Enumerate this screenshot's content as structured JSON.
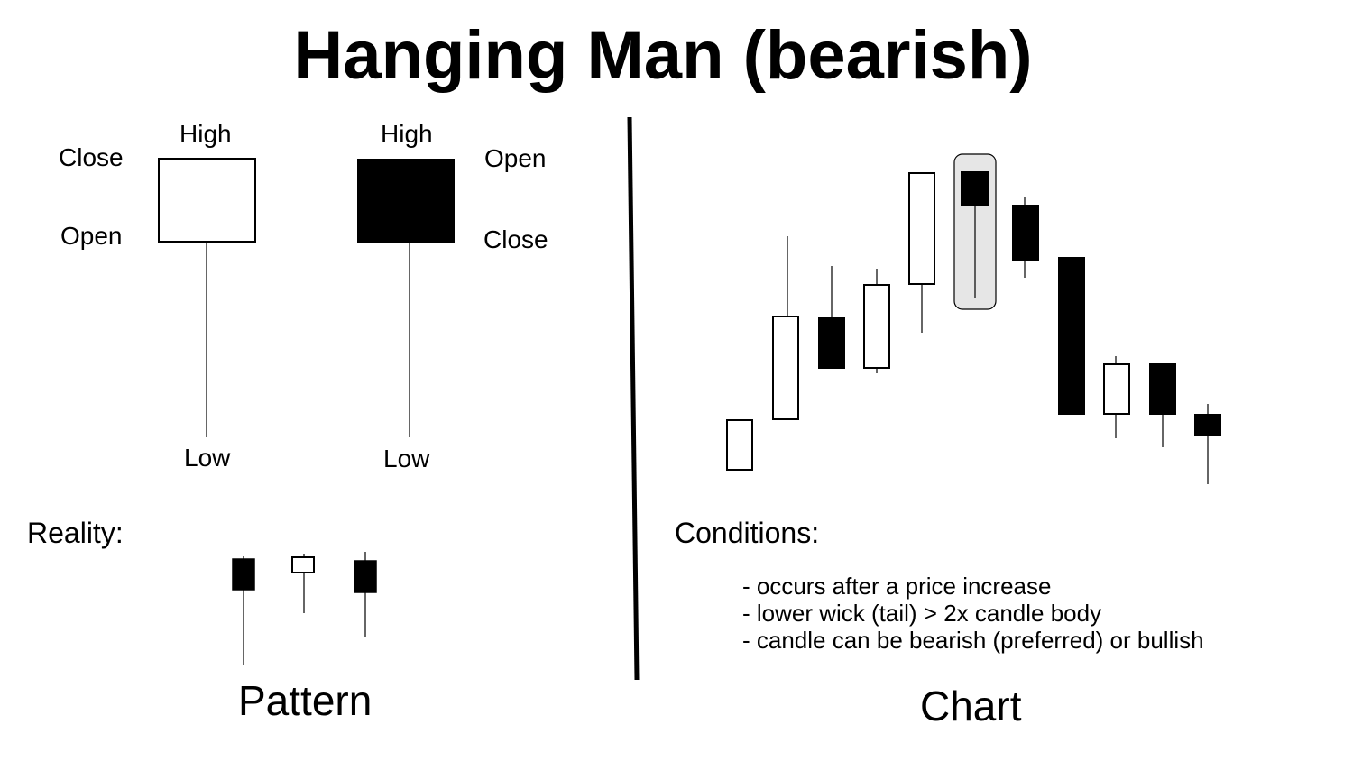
{
  "title": "Hanging Man (bearish)",
  "pattern": {
    "bullish": {
      "high": "High",
      "close": "Close",
      "open": "Open",
      "low": "Low"
    },
    "bearish": {
      "high": "High",
      "open": "Open",
      "close": "Close",
      "low": "Low"
    },
    "reality_label": "Reality:",
    "section_label": "Pattern"
  },
  "chart_section": {
    "conditions_label": "Conditions:",
    "conditions": [
      "- occurs after a price increase",
      "- lower wick (tail) > 2x candle body",
      "- candle can be bearish (preferred) or bullish"
    ],
    "section_label": "Chart"
  },
  "colors": {
    "ink": "#000000",
    "highlight": "#e6e6e6",
    "paper": "#ffffff"
  }
}
